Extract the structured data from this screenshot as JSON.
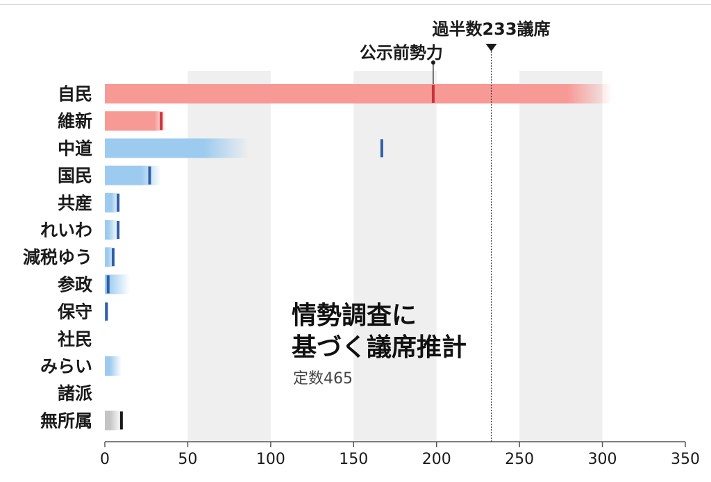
{
  "chart_data": {
    "type": "bar",
    "title_lines": [
      "情勢調査に",
      "基づく議席推計"
    ],
    "subtitle": "定数465",
    "categories": [
      "自民",
      "維新",
      "中道",
      "国民",
      "共産",
      "れいわ",
      "減税ゆう",
      "参政",
      "保守",
      "社民",
      "みらい",
      "諸派",
      "無所属"
    ],
    "estimate_low": [
      279,
      30,
      60,
      22,
      4,
      2,
      2,
      2,
      0,
      0,
      3,
      0,
      3
    ],
    "estimate_high": [
      306,
      37,
      87,
      34,
      9,
      8,
      6,
      15,
      2,
      0,
      10,
      0,
      10
    ],
    "pre_election_strength": [
      198,
      34,
      167,
      27,
      8,
      8,
      5,
      2,
      1,
      null,
      null,
      null,
      10
    ],
    "bar_colors": [
      "#f79a96",
      "#f79a96",
      "#9dcbef",
      "#9dcbef",
      "#9dcbef",
      "#9dcbef",
      "#9dcbef",
      "#9dcbef",
      "#9dcbef",
      "#9dcbef",
      "#9dcbef",
      "#9dcbef",
      "#c4c4c4"
    ],
    "marker_colors": [
      "#c8323a",
      "#c8323a",
      "#2e5ea8",
      "#2e5ea8",
      "#2e5ea8",
      "#2e5ea8",
      "#2e5ea8",
      "#2e5ea8",
      "#2e5ea8",
      "#2e5ea8",
      "#2e5ea8",
      "#2e5ea8",
      "#1a1a1a"
    ],
    "xlim": [
      0,
      350
    ],
    "xticks": [
      "0",
      "50",
      "100",
      "150",
      "200",
      "250",
      "300",
      "350"
    ],
    "shaded_bands": [
      [
        50,
        100
      ],
      [
        150,
        200
      ],
      [
        250,
        300
      ]
    ],
    "majority_line": {
      "value": 233,
      "label": "過半数233議席"
    },
    "pre_strength_label": "公示前勢力",
    "colors": {
      "band": "#efefef",
      "axis": "#555555"
    }
  }
}
